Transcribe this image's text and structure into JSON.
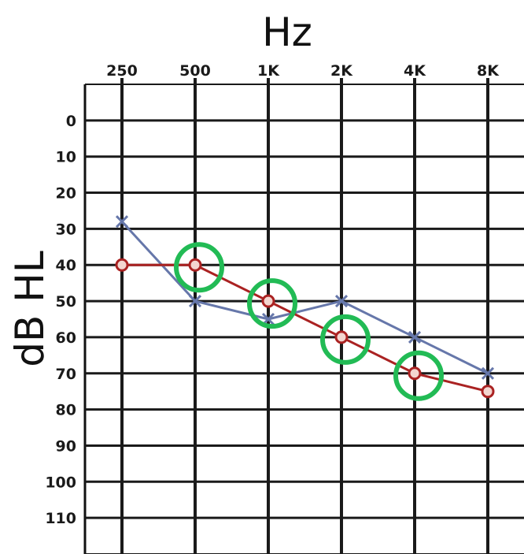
{
  "chart_data": {
    "type": "line",
    "xlabel": "Hz",
    "ylabel": "dB HL",
    "x_ticks": [
      "250",
      "500",
      "1K",
      "2K",
      "4K",
      "8K"
    ],
    "y_ticks": [
      "0",
      "10",
      "20",
      "30",
      "40",
      "50",
      "60",
      "70",
      "80",
      "90",
      "100",
      "110"
    ],
    "ylim": [
      -10,
      120
    ],
    "y_inverted": true,
    "grid": true,
    "series": [
      {
        "color": "#6677aa",
        "marker": "x",
        "values": [
          28,
          50,
          55,
          50,
          60,
          70
        ]
      },
      {
        "color": "#aa2222",
        "marker": "o",
        "values": [
          40,
          40,
          50,
          60,
          70,
          75
        ]
      }
    ],
    "highlights": {
      "color": "#22bb55",
      "shape": "circle",
      "x_ticks": [
        "500",
        "1K",
        "2K",
        "4K"
      ],
      "values": [
        40,
        50,
        60,
        70
      ]
    }
  }
}
